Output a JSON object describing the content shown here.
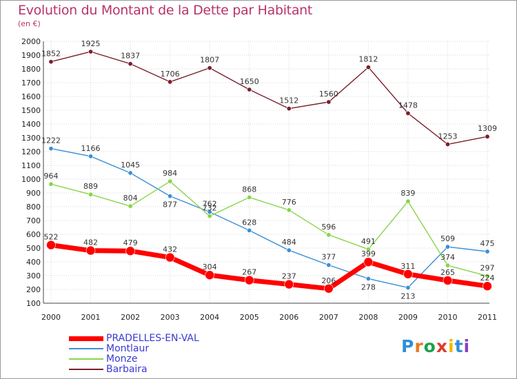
{
  "header": {
    "title": "Evolution du Montant de la Dette par Habitant",
    "subtitle": "(en €)"
  },
  "logo": {
    "letters": [
      "P",
      "r",
      "o",
      "x",
      "i",
      "t",
      "i"
    ],
    "colors": [
      "#2e8ed8",
      "#e87a1e",
      "#1aa24a",
      "#e23a2a",
      "#f2b600",
      "#2e8ed8",
      "#8a3fc2"
    ]
  },
  "chart_data": {
    "type": "line",
    "title": "Evolution du Montant de la Dette par Habitant",
    "subtitle": "(en €)",
    "x": [
      "2000",
      "2001",
      "2002",
      "2003",
      "2004",
      "2005",
      "2006",
      "2007",
      "2008",
      "2009",
      "2010",
      "2011"
    ],
    "ylim": [
      100,
      2000
    ],
    "yticks": [
      100,
      200,
      300,
      400,
      500,
      600,
      700,
      800,
      900,
      1000,
      1100,
      1200,
      1300,
      1400,
      1500,
      1600,
      1700,
      1800,
      1900,
      2000
    ],
    "grid": true,
    "legend": "bottom-left",
    "series": [
      {
        "name": "Barbaira",
        "color": "#7a1f2a",
        "values": [
          1852,
          1925,
          1837,
          1706,
          1807,
          1650,
          1512,
          1560,
          1812,
          1478,
          1253,
          1309
        ]
      },
      {
        "name": "Montlaur",
        "color": "#3a8fd6",
        "values": [
          1222,
          1166,
          1045,
          877,
          762,
          628,
          484,
          377,
          278,
          213,
          509,
          475
        ]
      },
      {
        "name": "Monze",
        "color": "#88d44a",
        "values": [
          964,
          889,
          804,
          984,
          732,
          868,
          776,
          596,
          491,
          839,
          374,
          297
        ]
      },
      {
        "name": "PRADELLES-EN-VAL",
        "color": "#ff0000",
        "values": [
          522,
          482,
          479,
          432,
          304,
          267,
          237,
          206,
          399,
          311,
          265,
          224
        ]
      }
    ],
    "legend_order": [
      "PRADELLES-EN-VAL",
      "Montlaur",
      "Monze",
      "Barbaira"
    ]
  }
}
